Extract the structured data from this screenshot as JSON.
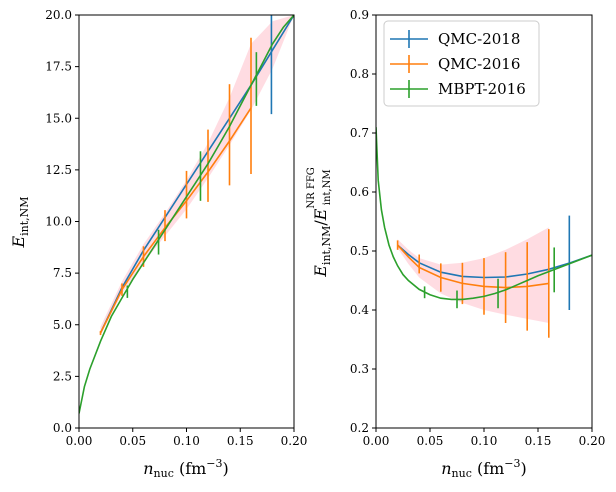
{
  "chart_data": [
    {
      "type": "line",
      "id": "left",
      "xlabel": "n_nuc (fm^-3)",
      "ylabel": "E_int,NM",
      "xlim": [
        0.0,
        0.2
      ],
      "ylim": [
        0.0,
        20.0
      ],
      "xticks": [
        0.0,
        0.05,
        0.1,
        0.15,
        0.2
      ],
      "xtick_labels": [
        "0.00",
        "0.05",
        "0.10",
        "0.15",
        "0.20"
      ],
      "yticks": [
        0.0,
        2.5,
        5.0,
        7.5,
        10.0,
        12.5,
        15.0,
        17.5,
        20.0
      ],
      "ytick_labels": [
        "0.0",
        "2.5",
        "5.0",
        "7.5",
        "10.0",
        "12.5",
        "15.0",
        "17.5",
        "20.0"
      ],
      "band": {
        "color": "#ffc0cb",
        "x": [
          0.02,
          0.04,
          0.06,
          0.08,
          0.1,
          0.12,
          0.14,
          0.16,
          0.18,
          0.2
        ],
        "lo": [
          4.5,
          6.5,
          8.0,
          9.3,
          10.6,
          12.1,
          13.7,
          15.4,
          17.4,
          20.0
        ],
        "hi": [
          4.9,
          7.1,
          8.9,
          10.4,
          12.0,
          13.8,
          16.0,
          18.6,
          19.7,
          20.0
        ]
      },
      "series": [
        {
          "name": "QMC-2018",
          "color": "#1f77b4",
          "line_x": [
            0.02,
            0.04,
            0.06,
            0.08,
            0.1,
            0.12,
            0.14,
            0.16,
            0.18,
            0.2
          ],
          "line_y": [
            4.6,
            6.8,
            8.6,
            10.2,
            11.8,
            13.4,
            15.0,
            16.6,
            18.3,
            20.0
          ],
          "err_x": [
            0.179
          ],
          "err_y": [
            18.0
          ],
          "err": [
            2.8
          ]
        },
        {
          "name": "QMC-2016",
          "color": "#ff7f0e",
          "line_x": [
            0.02,
            0.04,
            0.06,
            0.08,
            0.1,
            0.12,
            0.14,
            0.16
          ],
          "line_y": [
            4.6,
            6.7,
            8.3,
            9.7,
            11.0,
            12.4,
            13.9,
            15.5
          ],
          "err_x": [
            0.02,
            0.04,
            0.06,
            0.08,
            0.1,
            0.12,
            0.14,
            0.16
          ],
          "err_y": [
            4.6,
            6.7,
            8.3,
            9.8,
            11.3,
            12.7,
            14.2,
            15.6
          ],
          "err": [
            0.1,
            0.3,
            0.5,
            0.75,
            1.15,
            1.75,
            2.45,
            3.3
          ]
        },
        {
          "name": "MBPT-2016",
          "color": "#2ca02c",
          "line_x": [
            0.0,
            0.005,
            0.01,
            0.02,
            0.03,
            0.04,
            0.05,
            0.06,
            0.07,
            0.08,
            0.09,
            0.1,
            0.11,
            0.12,
            0.13,
            0.14,
            0.15,
            0.16,
            0.17,
            0.18,
            0.19,
            0.2
          ],
          "line_y": [
            0.7,
            2.0,
            2.85,
            4.2,
            5.4,
            6.3,
            7.2,
            8.0,
            8.8,
            9.6,
            10.4,
            11.2,
            12.0,
            12.8,
            13.7,
            14.6,
            15.6,
            16.6,
            17.6,
            18.6,
            19.4,
            20.0
          ],
          "err_x": [
            0.045,
            0.074,
            0.113,
            0.165
          ],
          "err_y": [
            6.6,
            9.0,
            12.2,
            16.9
          ],
          "err": [
            0.3,
            0.6,
            1.2,
            1.3
          ]
        }
      ]
    },
    {
      "type": "line",
      "id": "right",
      "xlabel": "n_nuc (fm^-3)",
      "ylabel": "E_int,NM / E^NR FFG_int,NM",
      "xlim": [
        0.0,
        0.2
      ],
      "ylim": [
        0.2,
        0.9
      ],
      "xticks": [
        0.0,
        0.05,
        0.1,
        0.15,
        0.2
      ],
      "xtick_labels": [
        "0.00",
        "0.05",
        "0.10",
        "0.15",
        "0.20"
      ],
      "yticks": [
        0.2,
        0.3,
        0.4,
        0.5,
        0.6,
        0.7,
        0.8,
        0.9
      ],
      "ytick_labels": [
        "0.2",
        "0.3",
        "0.4",
        "0.5",
        "0.6",
        "0.7",
        "0.8",
        "0.9"
      ],
      "band": {
        "color": "#ffc0cb",
        "x": [
          0.02,
          0.03,
          0.04,
          0.06,
          0.08,
          0.1,
          0.12,
          0.14,
          0.16
        ],
        "lo": [
          0.505,
          0.478,
          0.455,
          0.428,
          0.412,
          0.4,
          0.392,
          0.385,
          0.378
        ],
        "hi": [
          0.52,
          0.502,
          0.488,
          0.477,
          0.48,
          0.488,
          0.502,
          0.52,
          0.54
        ]
      },
      "series": [
        {
          "name": "QMC-2018",
          "color": "#1f77b4",
          "line_x": [
            0.02,
            0.03,
            0.04,
            0.06,
            0.08,
            0.1,
            0.12,
            0.14,
            0.16,
            0.18,
            0.2
          ],
          "line_y": [
            0.51,
            0.494,
            0.48,
            0.464,
            0.457,
            0.455,
            0.456,
            0.461,
            0.469,
            0.48,
            0.493
          ],
          "err_x": [
            0.179
          ],
          "err_y": [
            0.48
          ],
          "err": [
            0.08
          ]
        },
        {
          "name": "QMC-2016",
          "color": "#ff7f0e",
          "line_x": [
            0.02,
            0.03,
            0.04,
            0.06,
            0.08,
            0.1,
            0.12,
            0.14,
            0.16
          ],
          "line_y": [
            0.51,
            0.49,
            0.472,
            0.455,
            0.445,
            0.44,
            0.438,
            0.44,
            0.445
          ],
          "err_x": [
            0.02,
            0.04,
            0.06,
            0.08,
            0.1,
            0.12,
            0.14,
            0.16
          ],
          "err_y": [
            0.51,
            0.478,
            0.455,
            0.445,
            0.44,
            0.438,
            0.44,
            0.445
          ],
          "err": [
            0.008,
            0.016,
            0.024,
            0.035,
            0.048,
            0.06,
            0.075,
            0.092
          ]
        },
        {
          "name": "MBPT-2016",
          "color": "#2ca02c",
          "line_x": [
            0.0,
            0.002,
            0.005,
            0.008,
            0.012,
            0.016,
            0.02,
            0.025,
            0.03,
            0.04,
            0.05,
            0.06,
            0.07,
            0.08,
            0.09,
            0.1,
            0.11,
            0.12,
            0.13,
            0.14,
            0.15,
            0.16,
            0.17,
            0.18,
            0.19,
            0.2
          ],
          "line_y": [
            0.71,
            0.62,
            0.57,
            0.54,
            0.51,
            0.49,
            0.475,
            0.46,
            0.45,
            0.435,
            0.426,
            0.42,
            0.418,
            0.418,
            0.42,
            0.423,
            0.428,
            0.434,
            0.442,
            0.45,
            0.458,
            0.465,
            0.472,
            0.479,
            0.486,
            0.493
          ],
          "err_x": [
            0.045,
            0.075,
            0.113,
            0.165
          ],
          "err_y": [
            0.43,
            0.418,
            0.428,
            0.468
          ],
          "err": [
            0.01,
            0.015,
            0.025,
            0.038
          ]
        }
      ],
      "legend": {
        "position": "upper-left",
        "entries": [
          "QMC-2018",
          "QMC-2016",
          "MBPT-2016"
        ]
      }
    }
  ]
}
